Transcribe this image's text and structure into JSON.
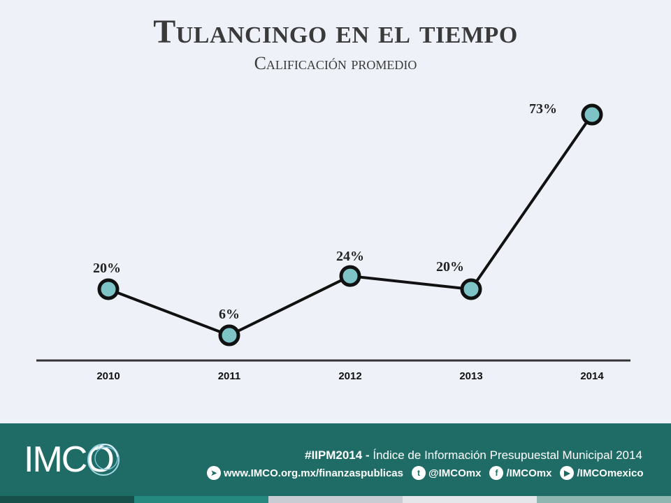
{
  "title": "Tulancingo en el tiempo",
  "subtitle": "Calificación promedio",
  "chart_data": {
    "type": "line",
    "title": "Tulancingo en el tiempo",
    "subtitle": "Calificación promedio",
    "categories": [
      "2010",
      "2011",
      "2012",
      "2013",
      "2014"
    ],
    "values": [
      20,
      6,
      24,
      20,
      73
    ],
    "data_labels": [
      "20%",
      "6%",
      "24%",
      "20%",
      "73%"
    ],
    "unit": "%",
    "grid": false,
    "legend": "none",
    "colors": {
      "line": "#111111",
      "marker_fill": "#7ec4c7",
      "marker_stroke": "#111111",
      "axis": "#333333"
    }
  },
  "footer": {
    "logo": "IMCO",
    "hashtag": "#IIPM2014 -",
    "description": "Índice de Información Presupuestal Municipal 2014",
    "links": [
      {
        "icon": "telegram-icon",
        "text": "www.IMCO.org.mx/finanzaspublicas"
      },
      {
        "icon": "twitter-icon",
        "text": "@IMCOmx"
      },
      {
        "icon": "facebook-icon",
        "text": "/IMCOmx"
      },
      {
        "icon": "youtube-icon",
        "text": "/IMCOmexico"
      }
    ],
    "colors": {
      "band": "#1f6b65",
      "stripes": [
        "#174f4b",
        "#26897f",
        "#c9ccd3",
        "#e4e6ea",
        "#8fb6b0"
      ]
    }
  }
}
